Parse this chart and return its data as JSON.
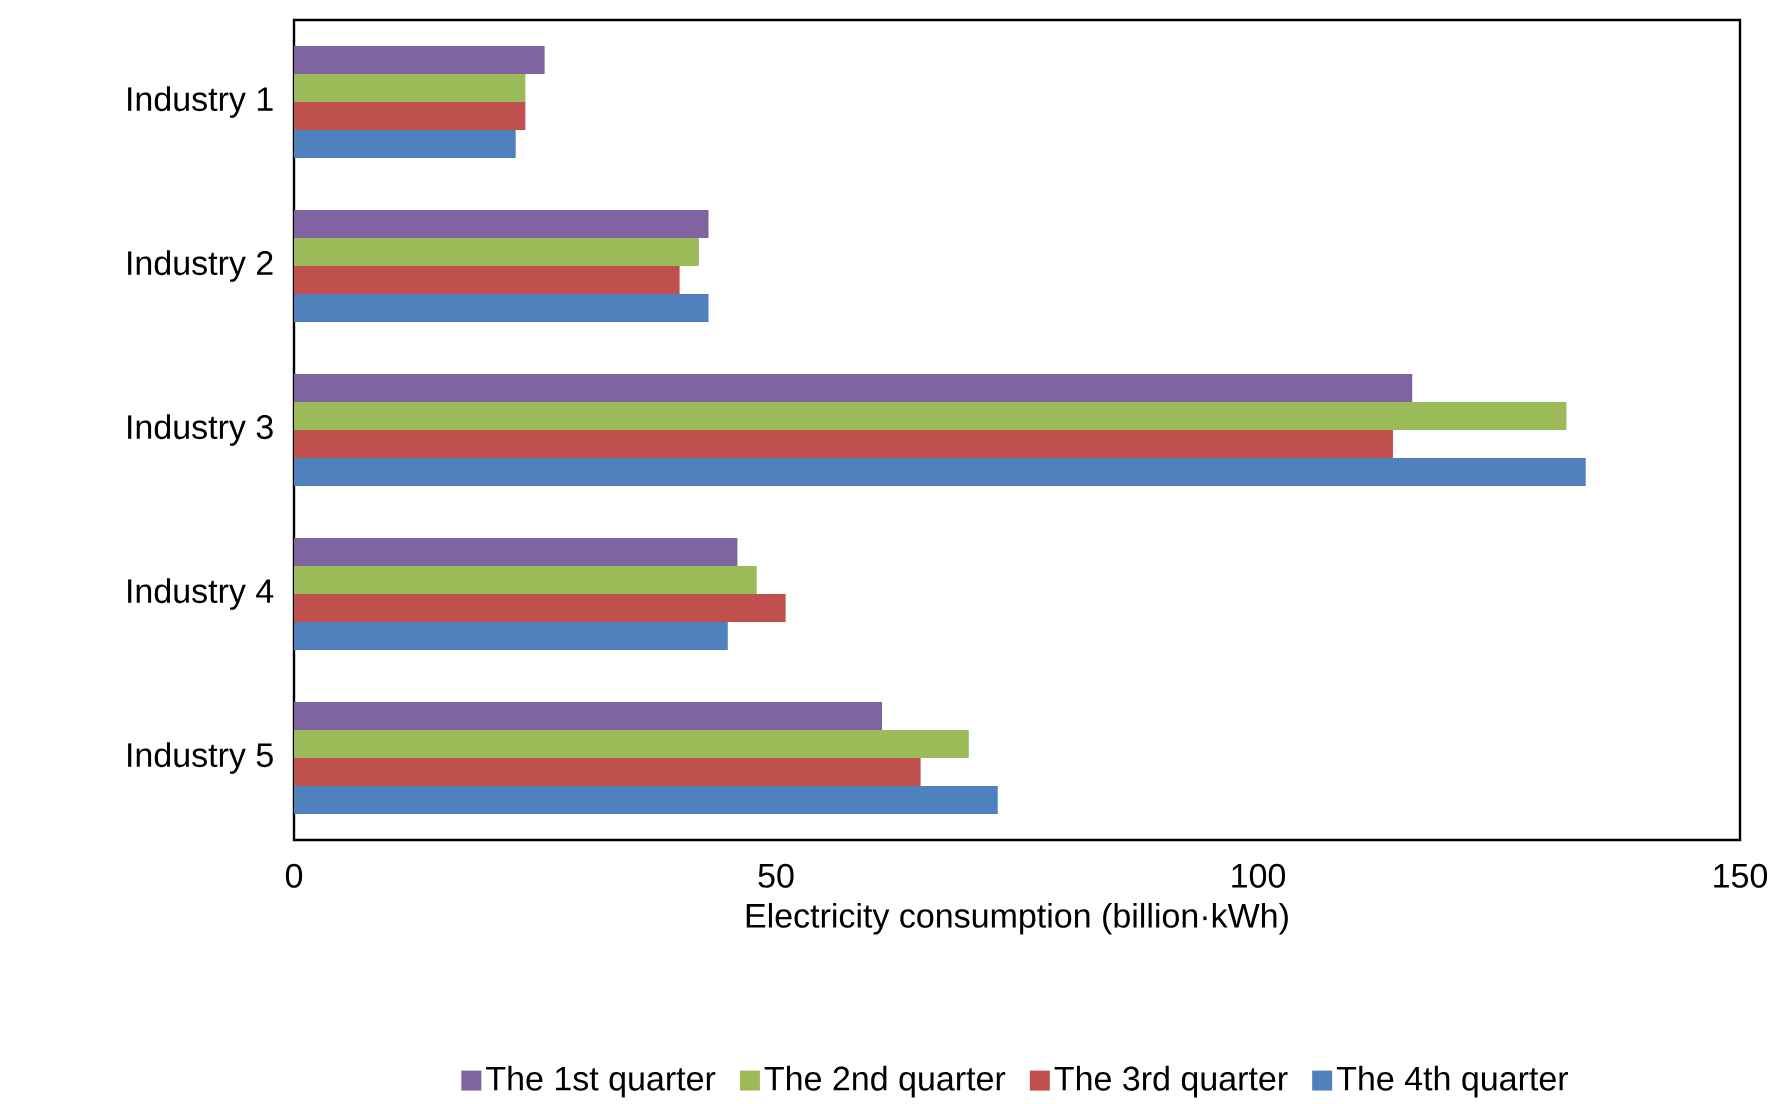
{
  "chart_data": {
    "type": "bar",
    "orientation": "horizontal",
    "xlabel": "Electricity consumption (billion·kWh)",
    "categories": [
      "Industry 1",
      "Industry 2",
      "Industry 3",
      "Industry 4",
      "Industry 5"
    ],
    "series": [
      {
        "name": "The 1st quarter",
        "color": "#8064a2",
        "values": [
          26,
          43,
          116,
          46,
          61
        ]
      },
      {
        "name": "The 2nd quarter",
        "color": "#9bbb59",
        "values": [
          24,
          42,
          132,
          48,
          70
        ]
      },
      {
        "name": "The 3rd quarter",
        "color": "#c0504d",
        "values": [
          24,
          40,
          114,
          51,
          65
        ]
      },
      {
        "name": "The 4th quarter",
        "color": "#4f81bd",
        "values": [
          23,
          43,
          134,
          45,
          73
        ]
      }
    ],
    "xlim": [
      0,
      150
    ],
    "xticks": [
      0,
      50,
      100,
      150
    ],
    "legend": "bottom"
  }
}
